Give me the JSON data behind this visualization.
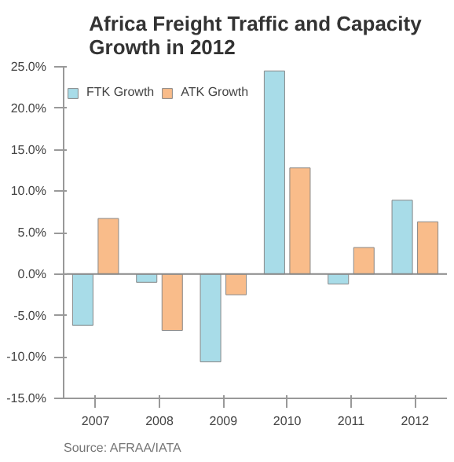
{
  "chart_data": {
    "type": "bar",
    "title": "Africa Freight Traffic and Capacity Growth in 2012",
    "categories": [
      "2007",
      "2008",
      "2009",
      "2010",
      "2011",
      "2012"
    ],
    "series": [
      {
        "name": "FTK Growth",
        "color": "#a8dce8",
        "values": [
          -6.2,
          -1.0,
          -10.6,
          24.5,
          -1.2,
          8.9
        ]
      },
      {
        "name": "ATK Growth",
        "color": "#f9bc8a",
        "values": [
          6.7,
          -6.8,
          -2.5,
          12.8,
          3.2,
          6.3
        ]
      }
    ],
    "ylim": [
      -15,
      25
    ],
    "yticks": [
      {
        "value": -15,
        "label": "-15.0%"
      },
      {
        "value": -10,
        "label": "-10.0%"
      },
      {
        "value": -5,
        "label": "-5.0%"
      },
      {
        "value": 0,
        "label": "0.0%"
      },
      {
        "value": 5,
        "label": "5.0%"
      },
      {
        "value": 10,
        "label": "10.0%"
      },
      {
        "value": 15,
        "label": "15.0%"
      },
      {
        "value": 20,
        "label": "20.0%"
      },
      {
        "value": 25,
        "label": "25.0%"
      }
    ],
    "grid": false,
    "legend": "top left",
    "ref_lines": [
      {
        "axis": "y",
        "value": 0,
        "color": "#888888"
      }
    ],
    "annotations": [
      "Source: AFRAA/IATA"
    ]
  }
}
